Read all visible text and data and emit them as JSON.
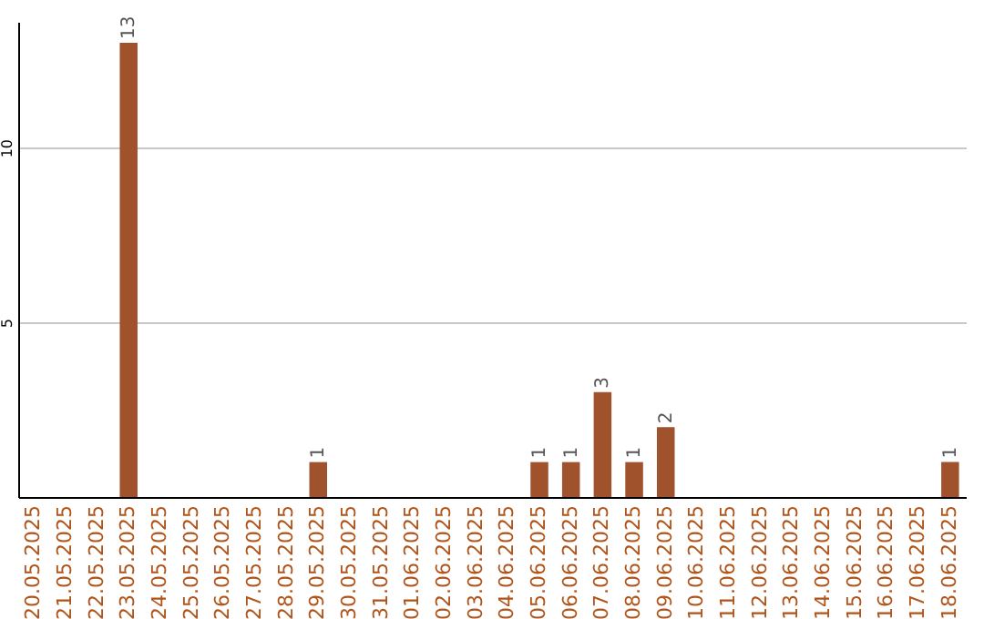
{
  "chart_data": {
    "type": "bar",
    "categories": [
      "20.05.2025",
      "21.05.2025",
      "22.05.2025",
      "23.05.2025",
      "24.05.2025",
      "25.05.2025",
      "26.05.2025",
      "27.05.2025",
      "28.05.2025",
      "29.05.2025",
      "30.05.2025",
      "31.05.2025",
      "01.06.2025",
      "02.06.2025",
      "03.06.2025",
      "04.06.2025",
      "05.06.2025",
      "06.06.2025",
      "07.06.2025",
      "08.06.2025",
      "09.06.2025",
      "10.06.2025",
      "11.06.2025",
      "12.06.2025",
      "13.06.2025",
      "14.06.2025",
      "15.06.2025",
      "16.06.2025",
      "17.06.2025",
      "18.06.2025"
    ],
    "values": [
      0,
      0,
      0,
      13,
      0,
      0,
      0,
      0,
      0,
      1,
      0,
      0,
      0,
      0,
      0,
      0,
      1,
      1,
      3,
      1,
      2,
      0,
      0,
      0,
      0,
      0,
      0,
      0,
      0,
      1
    ],
    "value_labels": [
      null,
      null,
      null,
      "13",
      null,
      null,
      null,
      null,
      null,
      "1",
      null,
      null,
      null,
      null,
      null,
      null,
      "1",
      "1",
      "3",
      "1",
      "2",
      null,
      null,
      null,
      null,
      null,
      null,
      null,
      null,
      "1"
    ],
    "color": "#a0522d",
    "ylim": [
      0,
      13.6
    ],
    "yticks": [
      5,
      10
    ],
    "grid": "y"
  }
}
